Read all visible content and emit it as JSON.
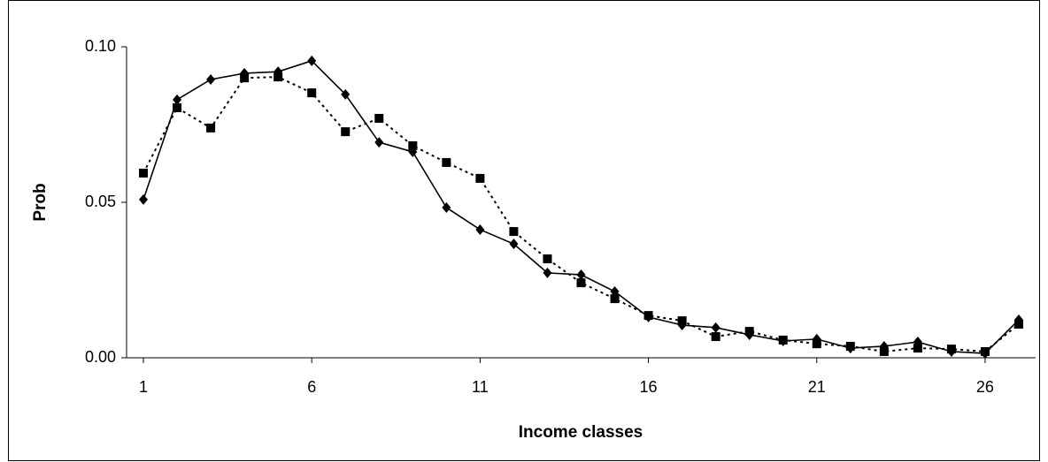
{
  "chart_data": {
    "type": "line",
    "x_label": "Income classes",
    "y_label": "Prob",
    "x": [
      1,
      2,
      3,
      4,
      5,
      6,
      7,
      8,
      9,
      10,
      11,
      12,
      13,
      14,
      15,
      16,
      17,
      18,
      19,
      20,
      21,
      22,
      23,
      24,
      25,
      26,
      27
    ],
    "xlim": [
      0.5,
      27.5
    ],
    "xticks": [
      1,
      6,
      11,
      16,
      21,
      26
    ],
    "ylim": [
      0,
      0.1
    ],
    "yticks": [
      {
        "value": 0,
        "label": "0.00"
      },
      {
        "value": 0.05,
        "label": "0.05"
      },
      {
        "value": 0.1,
        "label": "0.10"
      }
    ],
    "grid": false,
    "series": [
      {
        "color": "#000000",
        "marker": "diamond",
        "dash": "solid",
        "values": [
          0.0509,
          0.083,
          0.0895,
          0.0915,
          0.092,
          0.0955,
          0.0847,
          0.0693,
          0.0662,
          0.0483,
          0.0412,
          0.0366,
          0.0273,
          0.0267,
          0.0213,
          0.0131,
          0.0105,
          0.0097,
          0.0074,
          0.0054,
          0.006,
          0.0031,
          0.0037,
          0.0051,
          0.002,
          0.0014,
          0.0122
        ]
      },
      {
        "color": "#000000",
        "marker": "square",
        "dash": "dotted",
        "values": [
          0.0594,
          0.0804,
          0.0739,
          0.09,
          0.0903,
          0.0852,
          0.0727,
          0.077,
          0.0682,
          0.0628,
          0.0577,
          0.0406,
          0.0318,
          0.0241,
          0.019,
          0.0136,
          0.0119,
          0.0068,
          0.0085,
          0.0057,
          0.0045,
          0.0037,
          0.002,
          0.0031,
          0.0028,
          0.002,
          0.0108
        ]
      }
    ]
  }
}
